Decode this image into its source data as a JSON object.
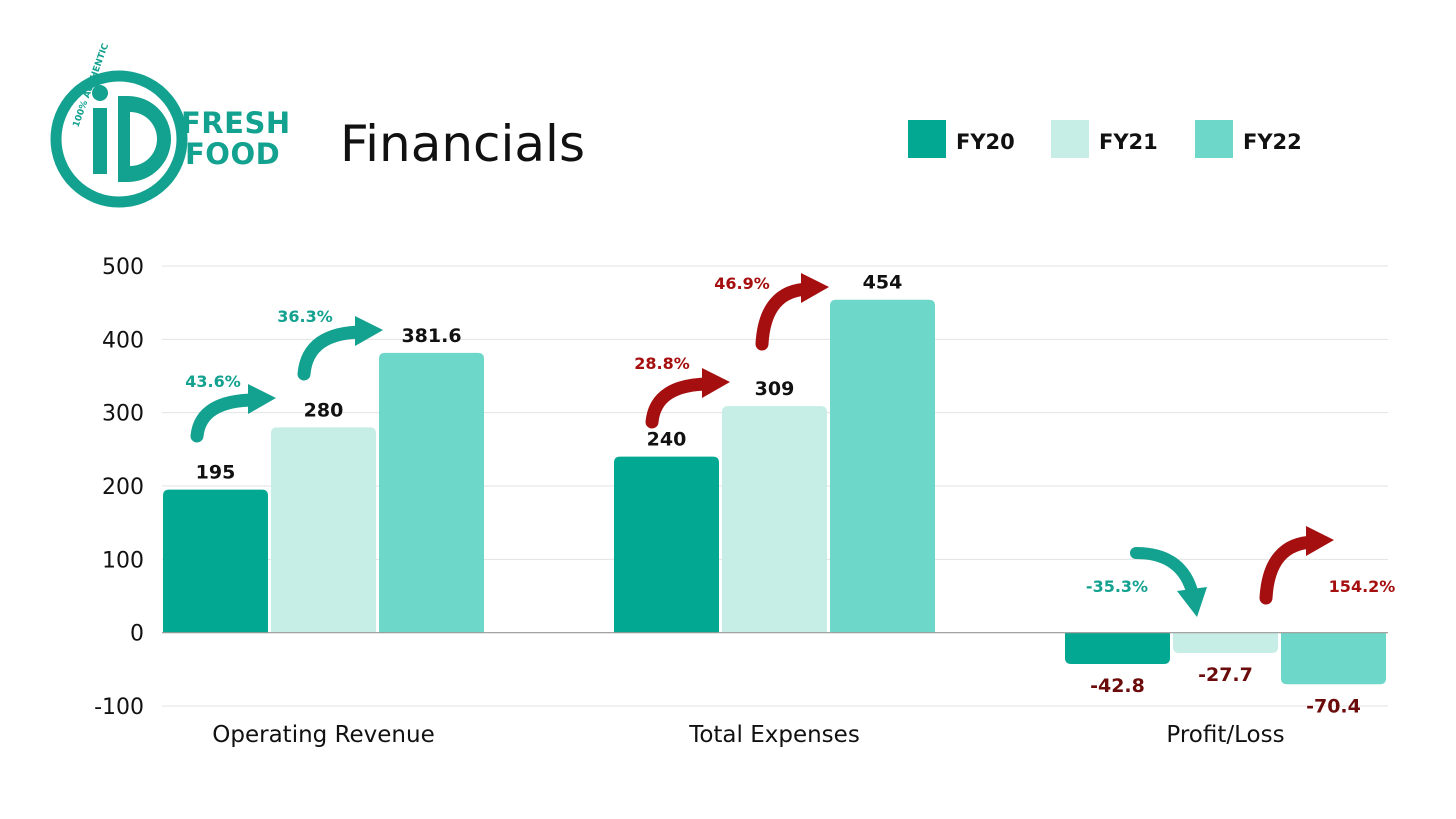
{
  "header": {
    "brand_line1": "FRESH",
    "brand_line2": "FOOD",
    "logo_arc_text": "100% AUTHENTIC",
    "logo_mark": "iD",
    "title": "Financials"
  },
  "colors": {
    "FY20": "#03a893",
    "FY21": "#c6ede6",
    "FY22": "#6dd7c9",
    "growth_teal": "#13a190",
    "growth_red": "#a50f0f",
    "negative_label": "#6b0b0b"
  },
  "chart_data": {
    "type": "bar",
    "title": "Financials",
    "categories": [
      "Operating Revenue",
      "Total Expenses",
      "Profit/Loss"
    ],
    "series": [
      {
        "name": "FY20",
        "values": [
          195,
          240,
          -42.8
        ]
      },
      {
        "name": "FY21",
        "values": [
          280,
          309,
          -27.7
        ]
      },
      {
        "name": "FY22",
        "values": [
          381.6,
          454,
          -70.4
        ]
      }
    ],
    "value_labels": [
      [
        "195",
        "280",
        "381.6"
      ],
      [
        "240",
        "309",
        "454"
      ],
      [
        "-42.8",
        "-27.7",
        "-70.4"
      ]
    ],
    "ylim": [
      -100,
      500
    ],
    "yticks": [
      -100,
      0,
      100,
      200,
      300,
      400,
      500
    ],
    "ytick_labels": [
      "-100",
      "0",
      "100",
      "200",
      "300",
      "400",
      "500"
    ],
    "grid": true,
    "legend": "top-right",
    "xlabel": "",
    "ylabel": "",
    "annotations": [
      {
        "text": "43.6%",
        "category": 0,
        "from": "FY20",
        "to": "FY21",
        "direction": "up",
        "color": "teal"
      },
      {
        "text": "36.3%",
        "category": 0,
        "from": "FY21",
        "to": "FY22",
        "direction": "up",
        "color": "teal"
      },
      {
        "text": "28.8%",
        "category": 1,
        "from": "FY20",
        "to": "FY21",
        "direction": "up",
        "color": "red"
      },
      {
        "text": "46.9%",
        "category": 1,
        "from": "FY21",
        "to": "FY22",
        "direction": "up",
        "color": "red"
      },
      {
        "text": "-35.3%",
        "category": 2,
        "from": "FY20",
        "to": "FY21",
        "direction": "down",
        "color": "teal"
      },
      {
        "text": "154.2%",
        "category": 2,
        "from": "FY21",
        "to": "FY22",
        "direction": "up",
        "color": "red"
      }
    ]
  }
}
